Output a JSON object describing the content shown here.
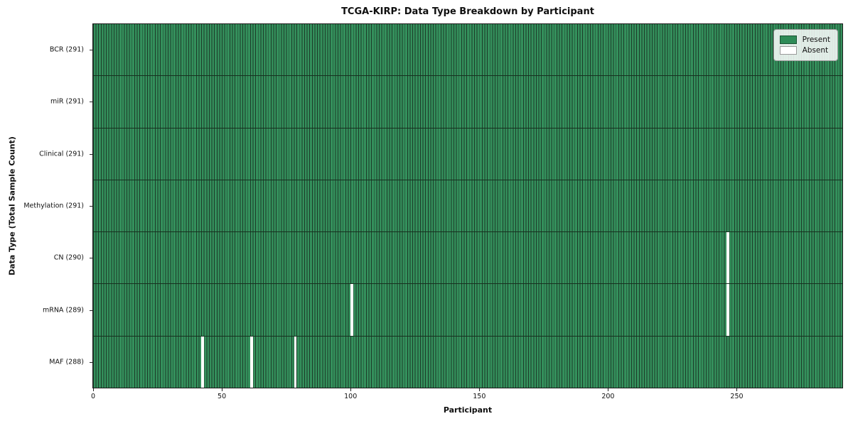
{
  "chart_data": {
    "type": "heatmap",
    "title": "TCGA-KIRP: Data Type Breakdown by Participant",
    "xlabel": "Participant",
    "ylabel": "Data Type (Total Sample Count)",
    "n_participants": 291,
    "x_ticks": [
      0,
      50,
      100,
      150,
      200,
      250
    ],
    "rows": [
      {
        "data_type": "BCR",
        "label": "BCR (291)",
        "present_count": 291,
        "absent_participants": []
      },
      {
        "data_type": "miR",
        "label": "miR (291)",
        "present_count": 291,
        "absent_participants": []
      },
      {
        "data_type": "Clinical",
        "label": "Clinical (291)",
        "present_count": 291,
        "absent_participants": []
      },
      {
        "data_type": "Methylation",
        "label": "Methylation (291)",
        "present_count": 291,
        "absent_participants": []
      },
      {
        "data_type": "CN",
        "label": "CN (290)",
        "present_count": 290,
        "absent_participants": [
          246
        ]
      },
      {
        "data_type": "mRNA",
        "label": "mRNA (289)",
        "present_count": 289,
        "absent_participants": [
          100,
          246
        ]
      },
      {
        "data_type": "MAF",
        "label": "MAF (288)",
        "present_count": 288,
        "absent_participants": [
          42,
          61,
          78
        ]
      }
    ],
    "colors": {
      "present": "#2e8b57",
      "present_fill": "#34905c",
      "cell_edge": "#1c3a28",
      "absent": "#ffffff"
    },
    "legend": {
      "position": "upper right",
      "entries": [
        {
          "label": "Present",
          "color": "#2e8b57"
        },
        {
          "label": "Absent",
          "color": "#ffffff"
        }
      ]
    }
  }
}
